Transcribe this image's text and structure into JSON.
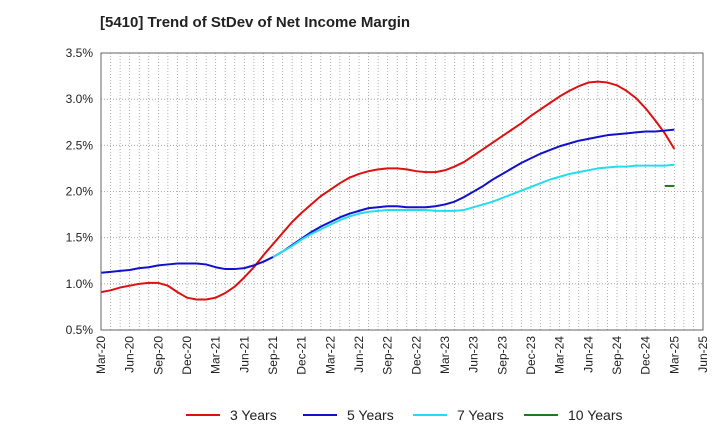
{
  "chart_data": {
    "type": "line",
    "title": "[5410]  Trend of StDev of Net Income Margin",
    "xlabel": "",
    "ylabel": "",
    "ylim": [
      0.5,
      3.5
    ],
    "y_tick_labels": [
      "0.5%",
      "1.0%",
      "1.5%",
      "2.0%",
      "2.5%",
      "3.0%",
      "3.5%"
    ],
    "x_tick_labels": [
      "Mar-20",
      "Jun-20",
      "Sep-20",
      "Dec-20",
      "Mar-21",
      "Jun-21",
      "Sep-21",
      "Dec-21",
      "Mar-22",
      "Jun-22",
      "Sep-22",
      "Dec-22",
      "Mar-23",
      "Jun-23",
      "Sep-23",
      "Dec-23",
      "Mar-24",
      "Jun-24",
      "Sep-24",
      "Dec-24",
      "Mar-25",
      "Jun-25"
    ],
    "grid": true,
    "legend_position": "bottom",
    "x": [
      "Mar-20",
      "Apr-20",
      "May-20",
      "Jun-20",
      "Jul-20",
      "Aug-20",
      "Sep-20",
      "Oct-20",
      "Nov-20",
      "Dec-20",
      "Jan-21",
      "Feb-21",
      "Mar-21",
      "Apr-21",
      "May-21",
      "Jun-21",
      "Jul-21",
      "Aug-21",
      "Sep-21",
      "Oct-21",
      "Nov-21",
      "Dec-21",
      "Jan-22",
      "Feb-22",
      "Mar-22",
      "Apr-22",
      "May-22",
      "Jun-22",
      "Jul-22",
      "Aug-22",
      "Sep-22",
      "Oct-22",
      "Nov-22",
      "Dec-22",
      "Jan-23",
      "Feb-23",
      "Mar-23",
      "Apr-23",
      "May-23",
      "Jun-23",
      "Jul-23",
      "Aug-23",
      "Sep-23",
      "Oct-23",
      "Nov-23",
      "Dec-23",
      "Jan-24",
      "Feb-24",
      "Mar-24",
      "Apr-24",
      "May-24",
      "Jun-24",
      "Jul-24",
      "Aug-24",
      "Sep-24",
      "Oct-24",
      "Nov-24",
      "Dec-24",
      "Jan-25",
      "Feb-25",
      "Mar-25"
    ],
    "series": [
      {
        "name": "3 Years",
        "color": "#dd1111",
        "values": [
          0.91,
          0.93,
          0.96,
          0.98,
          1.0,
          1.01,
          1.01,
          0.98,
          0.91,
          0.85,
          0.83,
          0.83,
          0.85,
          0.9,
          0.97,
          1.07,
          1.18,
          1.31,
          1.43,
          1.55,
          1.67,
          1.77,
          1.86,
          1.95,
          2.02,
          2.09,
          2.15,
          2.19,
          2.22,
          2.24,
          2.25,
          2.25,
          2.24,
          2.22,
          2.21,
          2.21,
          2.23,
          2.27,
          2.32,
          2.39,
          2.46,
          2.53,
          2.6,
          2.67,
          2.74,
          2.82,
          2.89,
          2.96,
          3.03,
          3.09,
          3.14,
          3.18,
          3.19,
          3.18,
          3.15,
          3.09,
          3.01,
          2.9,
          2.77,
          2.63,
          2.46
        ]
      },
      {
        "name": "5 Years",
        "color": "#1111cc",
        "values": [
          1.12,
          1.13,
          1.14,
          1.15,
          1.17,
          1.18,
          1.2,
          1.21,
          1.22,
          1.22,
          1.22,
          1.21,
          1.18,
          1.16,
          1.16,
          1.17,
          1.2,
          1.24,
          1.29,
          1.35,
          1.42,
          1.49,
          1.56,
          1.62,
          1.67,
          1.72,
          1.76,
          1.79,
          1.82,
          1.83,
          1.84,
          1.84,
          1.83,
          1.83,
          1.83,
          1.84,
          1.86,
          1.89,
          1.94,
          2.0,
          2.06,
          2.13,
          2.19,
          2.25,
          2.31,
          2.36,
          2.41,
          2.45,
          2.49,
          2.52,
          2.55,
          2.57,
          2.59,
          2.61,
          2.62,
          2.63,
          2.64,
          2.65,
          2.65,
          2.66,
          2.67
        ]
      },
      {
        "name": "7 Years",
        "color": "#22ddee",
        "values": [
          null,
          null,
          null,
          null,
          null,
          null,
          null,
          null,
          null,
          null,
          null,
          null,
          null,
          null,
          null,
          null,
          null,
          null,
          1.29,
          1.35,
          1.41,
          1.48,
          1.54,
          1.59,
          1.64,
          1.69,
          1.73,
          1.76,
          1.78,
          1.79,
          1.8,
          1.8,
          1.8,
          1.8,
          1.8,
          1.79,
          1.79,
          1.79,
          1.8,
          1.83,
          1.86,
          1.89,
          1.93,
          1.97,
          2.01,
          2.05,
          2.09,
          2.13,
          2.16,
          2.19,
          2.21,
          2.23,
          2.25,
          2.26,
          2.27,
          2.27,
          2.28,
          2.28,
          2.28,
          2.28,
          2.29
        ]
      },
      {
        "name": "10 Years",
        "color": "#227722",
        "values": [
          null,
          null,
          null,
          null,
          null,
          null,
          null,
          null,
          null,
          null,
          null,
          null,
          null,
          null,
          null,
          null,
          null,
          null,
          null,
          null,
          null,
          null,
          null,
          null,
          null,
          null,
          null,
          null,
          null,
          null,
          null,
          null,
          null,
          null,
          null,
          null,
          null,
          null,
          null,
          null,
          null,
          null,
          null,
          null,
          null,
          null,
          null,
          null,
          null,
          null,
          null,
          null,
          null,
          null,
          null,
          null,
          null,
          null,
          null,
          2.06,
          2.06
        ]
      }
    ]
  }
}
